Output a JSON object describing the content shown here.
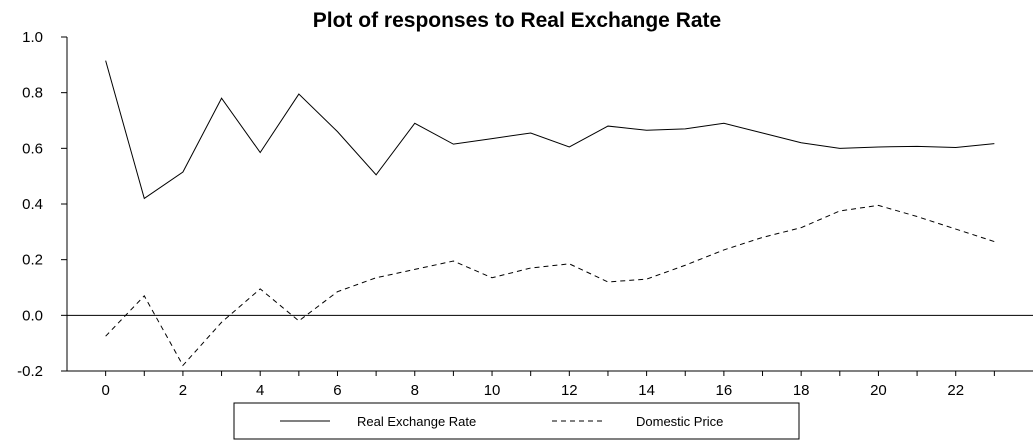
{
  "chart_data": {
    "type": "line",
    "title": "Plot of responses to Real Exchange Rate",
    "xlabel": "",
    "ylabel": "",
    "x": [
      0,
      1,
      2,
      3,
      4,
      5,
      6,
      7,
      8,
      9,
      10,
      11,
      12,
      13,
      14,
      15,
      16,
      17,
      18,
      19,
      20,
      21,
      22,
      23
    ],
    "xlim": [
      -1,
      24
    ],
    "ylim": [
      -0.2,
      1.0
    ],
    "x_ticks": [
      "0",
      "2",
      "4",
      "6",
      "8",
      "10",
      "12",
      "14",
      "16",
      "18",
      "20",
      "22"
    ],
    "x_tick_values": [
      0,
      2,
      4,
      6,
      8,
      10,
      12,
      14,
      16,
      18,
      20,
      22
    ],
    "y_ticks": [
      "1.0",
      "0.8",
      "0.6",
      "0.4",
      "0.2",
      "0.0",
      "-0.2"
    ],
    "y_tick_values": [
      1.0,
      0.8,
      0.6,
      0.4,
      0.2,
      0.0,
      -0.2
    ],
    "zero_line": true,
    "grid": false,
    "legend_position": "bottom",
    "series": [
      {
        "name": "Real Exchange Rate",
        "style": "solid",
        "color": "#000000",
        "values": [
          0.915,
          0.42,
          0.515,
          0.78,
          0.585,
          0.795,
          0.66,
          0.505,
          0.69,
          0.615,
          0.635,
          0.655,
          0.605,
          0.68,
          0.665,
          0.67,
          0.69,
          0.655,
          0.62,
          0.6,
          0.605,
          0.607,
          0.603,
          0.617
        ]
      },
      {
        "name": "Domestic Price",
        "style": "dashed",
        "color": "#000000",
        "values": [
          -0.075,
          0.07,
          -0.18,
          -0.025,
          0.095,
          -0.02,
          0.085,
          0.135,
          0.165,
          0.195,
          0.135,
          0.17,
          0.185,
          0.12,
          0.13,
          0.18,
          0.235,
          0.28,
          0.315,
          0.375,
          0.395,
          0.355,
          0.31,
          0.265
        ]
      }
    ]
  }
}
